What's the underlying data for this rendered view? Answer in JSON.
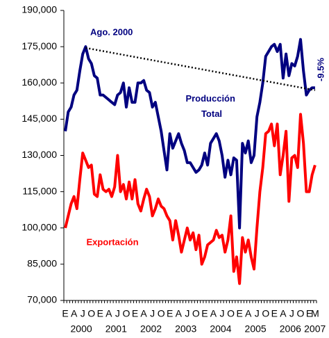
{
  "chart_data": {
    "type": "line",
    "categories": [
      "E",
      null,
      null,
      "A",
      null,
      null,
      "J",
      null,
      null,
      "O",
      null,
      null,
      "E",
      null,
      null,
      "A",
      null,
      null,
      "J",
      null,
      null,
      "O",
      null,
      null,
      "E",
      null,
      null,
      "A",
      null,
      null,
      "J",
      null,
      null,
      "O",
      null,
      null,
      "E",
      null,
      null,
      "A",
      null,
      null,
      "J",
      null,
      null,
      "O",
      null,
      null,
      "E",
      null,
      null,
      "A",
      null,
      null,
      "J",
      null,
      null,
      "O",
      null,
      null,
      "E",
      null,
      null,
      "A",
      null,
      null,
      "J",
      null,
      null,
      "O",
      null,
      null,
      "E",
      null,
      null,
      "A",
      null,
      null,
      "J",
      null,
      null,
      "O",
      null,
      null,
      "E",
      null,
      "M"
    ],
    "years": [
      "2000",
      "2001",
      "2002",
      "2003",
      "2004",
      "2005",
      "2006",
      "2007"
    ],
    "series": [
      {
        "name": "Producción Total",
        "color": "#000080",
        "values": [
          140000,
          148000,
          150000,
          155000,
          157000,
          165000,
          172000,
          175000,
          170000,
          168000,
          163000,
          162000,
          155000,
          155000,
          154000,
          153000,
          152000,
          151000,
          155000,
          156000,
          160000,
          150000,
          158000,
          152000,
          152000,
          160000,
          160000,
          161000,
          157000,
          156000,
          150000,
          152000,
          146000,
          140000,
          132000,
          124000,
          139000,
          133000,
          136000,
          139000,
          135000,
          132000,
          127000,
          127000,
          125000,
          123000,
          124000,
          126000,
          131000,
          126000,
          135000,
          137000,
          139000,
          136000,
          130000,
          121000,
          128000,
          122000,
          129000,
          128000,
          100000,
          135000,
          131000,
          136000,
          127000,
          130000,
          146000,
          152000,
          160000,
          171000,
          173000,
          175000,
          176000,
          173000,
          176000,
          162000,
          172000,
          163000,
          168000,
          167000,
          171000,
          178000,
          165000,
          155000,
          157000,
          158000,
          158000
        ]
      },
      {
        "name": "Exportación",
        "color": "#ff0000",
        "values": [
          100000,
          105000,
          110000,
          113000,
          108000,
          120000,
          131000,
          128000,
          125000,
          126000,
          114000,
          113000,
          122000,
          116000,
          115000,
          116000,
          113000,
          117000,
          130000,
          115000,
          118000,
          112000,
          119000,
          112000,
          120000,
          110000,
          107000,
          112000,
          116000,
          113000,
          105000,
          108000,
          112000,
          109000,
          108000,
          105000,
          103000,
          95000,
          103000,
          97000,
          90000,
          95000,
          100000,
          95000,
          98000,
          91000,
          97000,
          85000,
          88000,
          93000,
          94000,
          95000,
          99000,
          96000,
          97000,
          90000,
          95000,
          105000,
          82000,
          88000,
          77000,
          96000,
          90000,
          95000,
          88000,
          83000,
          100000,
          115000,
          125000,
          139000,
          140000,
          143000,
          134000,
          143000,
          122000,
          130000,
          140000,
          111000,
          129000,
          130000,
          125000,
          147000,
          135000,
          115000,
          115000,
          122000,
          126000
        ]
      }
    ],
    "annotations": {
      "peak": "Ago. 2000",
      "change": "-9.5%"
    },
    "trend": {
      "values": [
        174500,
        157000
      ]
    },
    "ylim": [
      70000,
      190000
    ],
    "yticks": [
      {
        "value": 70000,
        "label": "70,000"
      },
      {
        "value": 85000,
        "label": "85,000"
      },
      {
        "value": 100000,
        "label": "100,000"
      },
      {
        "value": 115000,
        "label": "115,000"
      },
      {
        "value": 130000,
        "label": "130,000"
      },
      {
        "value": 145000,
        "label": "145,000"
      },
      {
        "value": 160000,
        "label": "160,000"
      },
      {
        "value": 175000,
        "label": "175,000"
      },
      {
        "value": 190000,
        "label": "190,000"
      }
    ],
    "grid": false
  }
}
